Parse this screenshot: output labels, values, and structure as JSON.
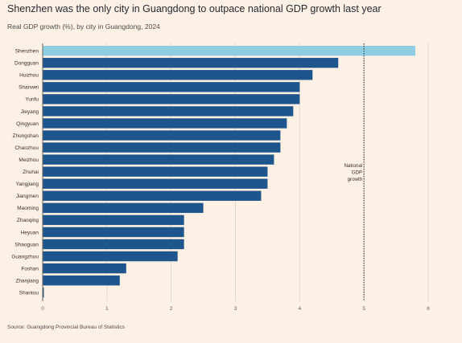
{
  "title": "Shenzhen was the only city in Guangdong to outpace national GDP growth last year",
  "subtitle": "Real GDP growth (%), by city in Guangdong, 2024",
  "source": "Source: Guangdong Provincial Bureau of Statistics",
  "colors": {
    "background": "#fdf1e5",
    "highlight": "#8fcde2",
    "bar": "#1e558c",
    "grid": "#e3d7cc",
    "reference_line": "#33302e"
  },
  "chart_data": {
    "type": "bar",
    "orientation": "horizontal",
    "categories": [
      "Shenzhen",
      "Dongguan",
      "Huizhou",
      "Shanwei",
      "Yunfu",
      "Jieyang",
      "Qingyuan",
      "Zhongshan",
      "Chaozhou",
      "Meizhou",
      "Zhuhai",
      "Yangjiang",
      "Jiangmen",
      "Maoming",
      "Zhaoqing",
      "Heyuan",
      "Shaoguan",
      "Guangzhou",
      "Foshan",
      "Zhanjiang",
      "Shantou"
    ],
    "values": [
      5.8,
      4.6,
      4.2,
      4.0,
      4.0,
      3.9,
      3.8,
      3.7,
      3.7,
      3.6,
      3.5,
      3.5,
      3.4,
      2.5,
      2.2,
      2.2,
      2.2,
      2.1,
      1.3,
      1.2,
      0.0
    ],
    "highlight": "Shenzhen",
    "xlim": [
      0,
      6
    ],
    "x_ticks": [
      "0",
      "1",
      "2",
      "3",
      "4",
      "5",
      "6"
    ],
    "grid": true,
    "reference_line": {
      "value": 5.0,
      "label": [
        "National",
        "GDP",
        "growth"
      ]
    }
  }
}
